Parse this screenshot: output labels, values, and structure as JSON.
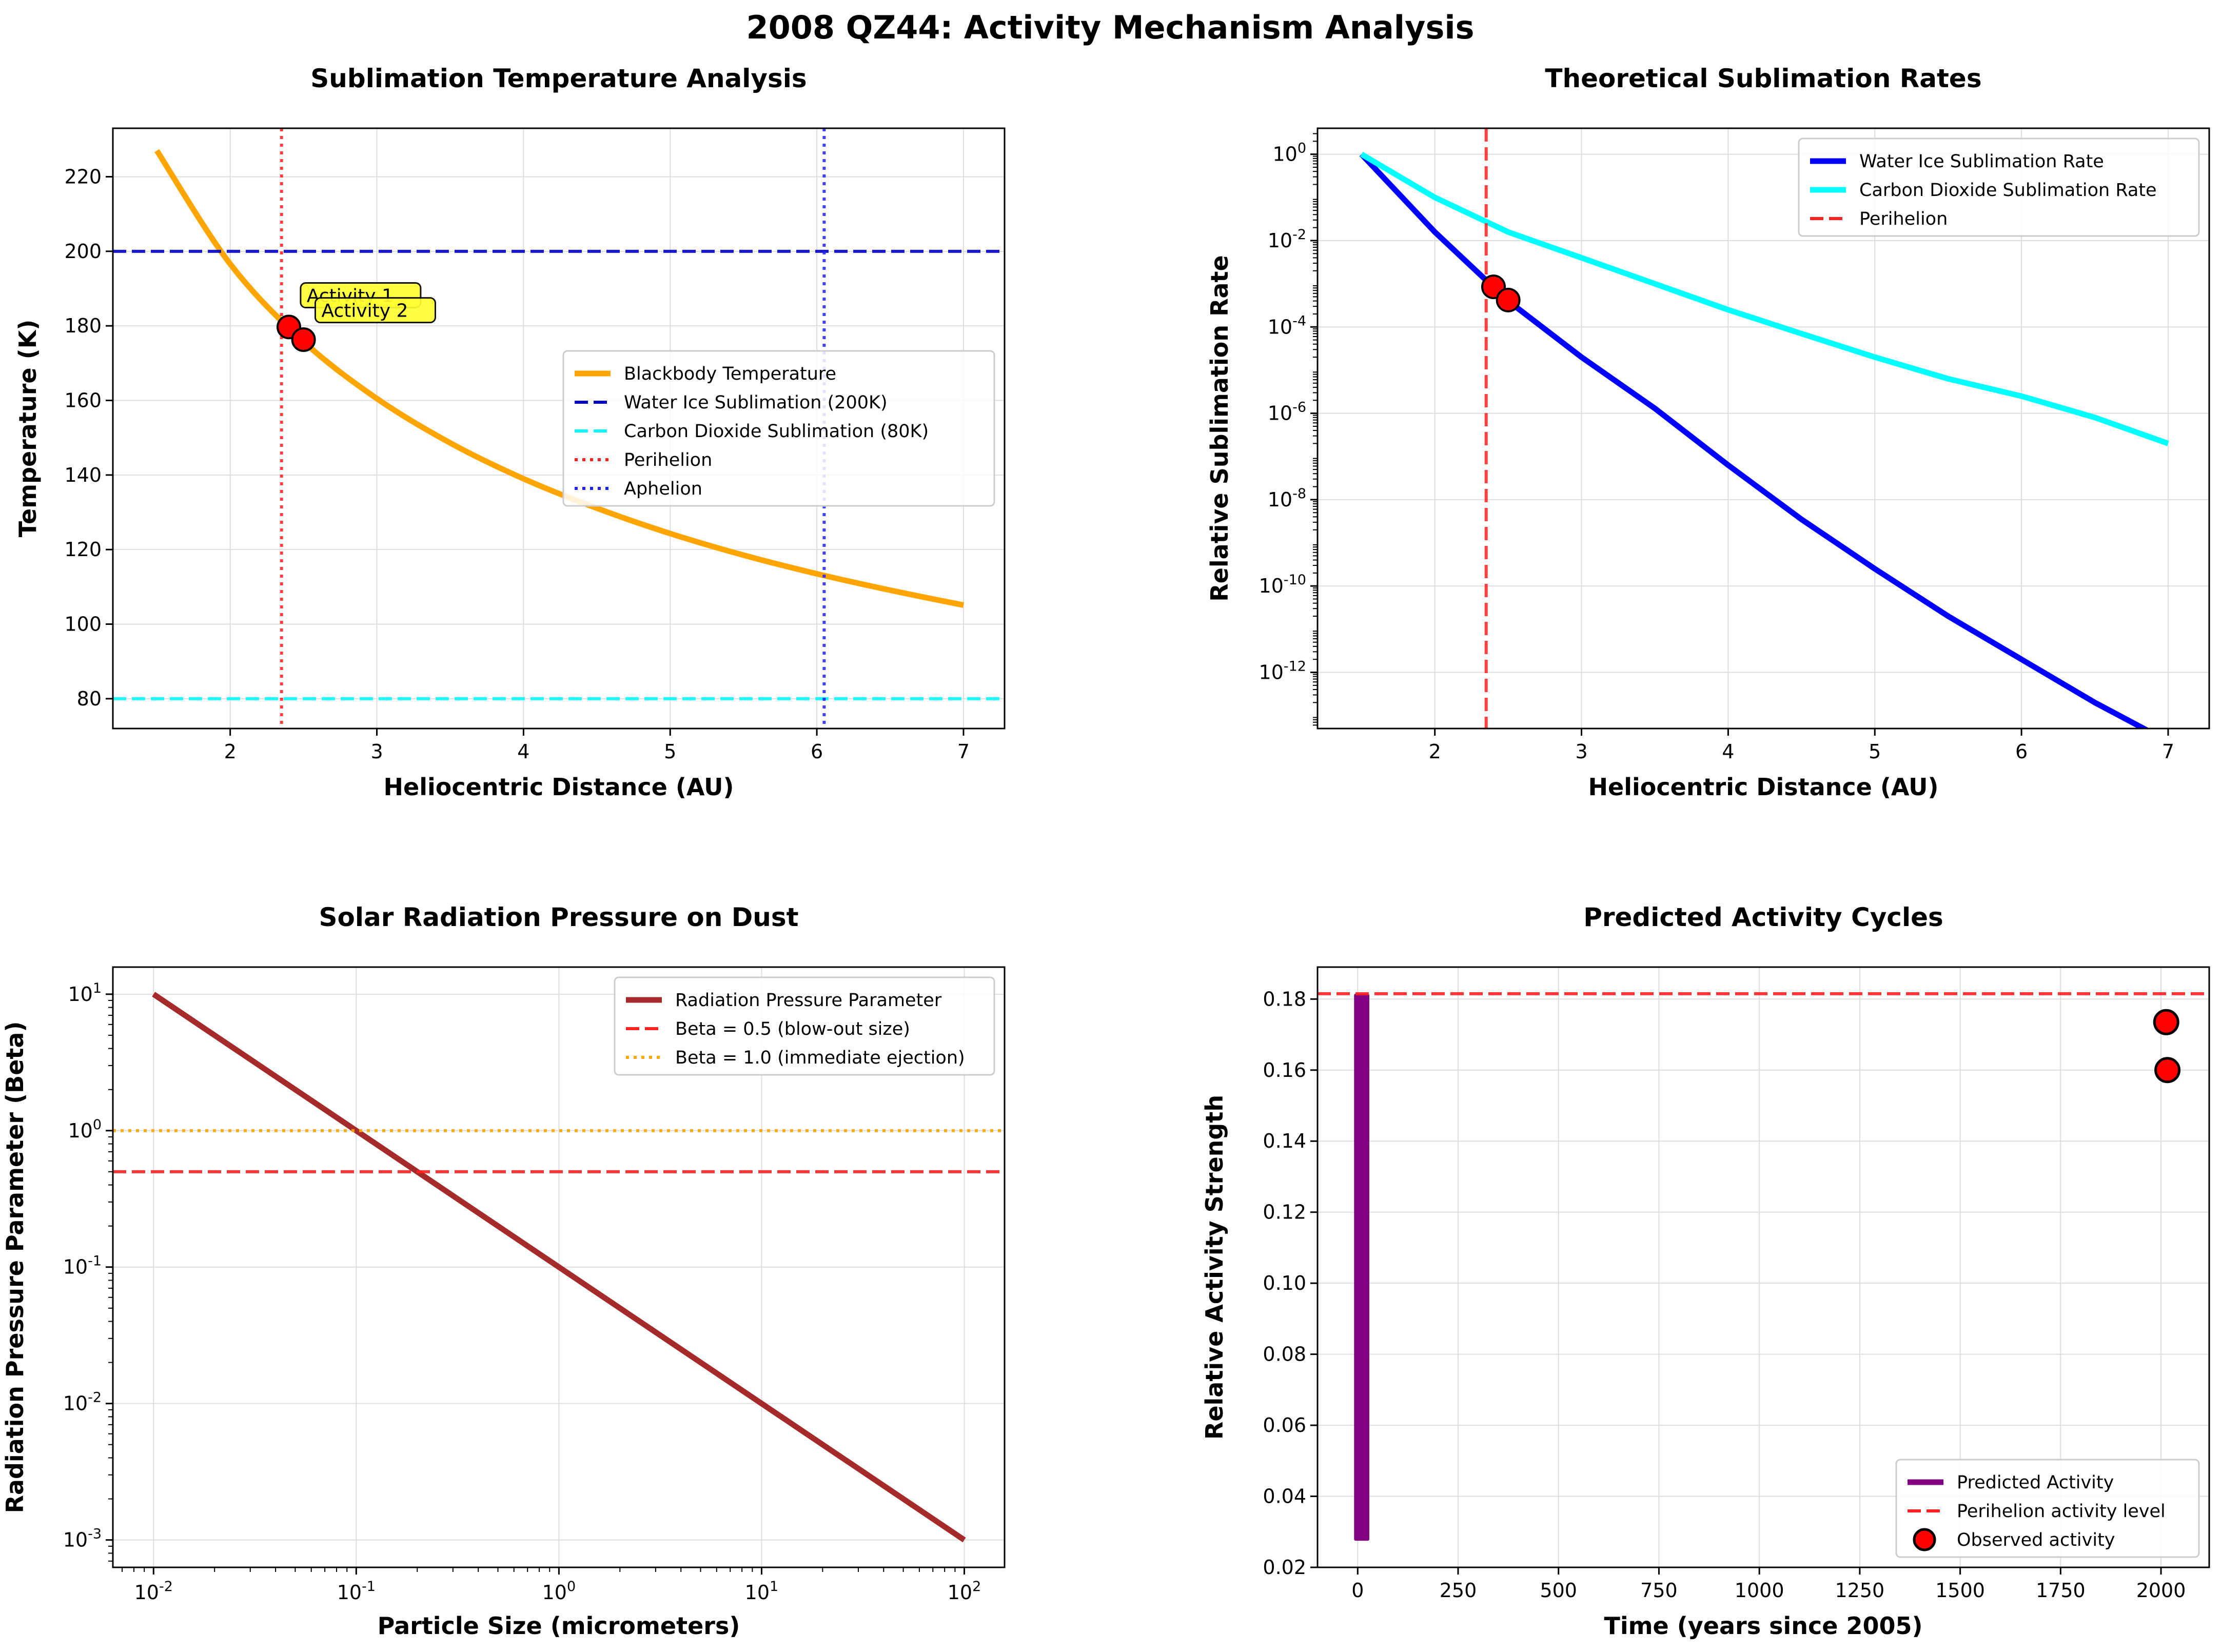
{
  "figure": {
    "title": "2008 QZ44: Activity Mechanism Analysis"
  },
  "chart_data": [
    {
      "type": "line",
      "title": "Sublimation Temperature Analysis",
      "xlabel": "Heliocentric Distance (AU)",
      "ylabel": "Temperature (K)",
      "xlim": [
        1.2,
        7.28
      ],
      "ylim": [
        72,
        233
      ],
      "yscale": "linear",
      "xticks": [
        2,
        3,
        4,
        5,
        6,
        7
      ],
      "yticks": [
        80,
        100,
        120,
        140,
        160,
        180,
        200,
        220
      ],
      "grid": true,
      "legend": "center-right",
      "series": [
        {
          "name": "Blackbody Temperature",
          "kind": "curve",
          "x": [
            1.5,
            2.0,
            2.5,
            3.0,
            3.5,
            4.0,
            4.5,
            5.0,
            5.5,
            6.0,
            6.5,
            7.0
          ],
          "y": [
            227.0,
            196.6,
            175.8,
            160.5,
            148.6,
            139.0,
            131.1,
            124.3,
            118.5,
            113.5,
            109.1,
            105.1
          ],
          "color": "#ffa500",
          "dash": "solid"
        },
        {
          "name": "Water Ice Sublimation (200K)",
          "kind": "hline",
          "y": 200,
          "color": "#0000cc",
          "dash": "dashed"
        },
        {
          "name": "Carbon Dioxide Sublimation (80K)",
          "kind": "hline",
          "y": 80,
          "color": "#00ffff",
          "dash": "dashed"
        },
        {
          "name": "Perihelion",
          "kind": "vline",
          "x": 2.35,
          "color": "#ff2020",
          "dash": "dotted"
        },
        {
          "name": "Aphelion",
          "kind": "vline",
          "x": 6.05,
          "color": "#2020ff",
          "dash": "dotted"
        }
      ],
      "markers": [
        {
          "x": 2.4,
          "y": 179.7
        },
        {
          "x": 2.5,
          "y": 176.3
        }
      ],
      "annotations": [
        {
          "text": "Activity 1",
          "x": 2.48,
          "y": 186
        },
        {
          "text": "Activity 2",
          "x": 2.58,
          "y": 182
        }
      ]
    },
    {
      "type": "line",
      "title": "Theoretical Sublimation Rates",
      "xlabel": "Heliocentric Distance (AU)",
      "ylabel": "Relative Sublimation Rate",
      "xlim": [
        1.2,
        7.28
      ],
      "ylim": [
        5e-14,
        4
      ],
      "yscale": "log",
      "xticks": [
        2,
        3,
        4,
        5,
        6,
        7
      ],
      "yticks": [
        1,
        0.01,
        0.0001,
        1e-06,
        1e-08,
        1e-10,
        1e-12
      ],
      "ytick_exponents": [
        0,
        -2,
        -4,
        -6,
        -8,
        -10,
        -12
      ],
      "grid": true,
      "legend": "top-right",
      "series": [
        {
          "name": "Water Ice Sublimation Rate",
          "kind": "curve",
          "x": [
            1.5,
            2.0,
            2.5,
            3.0,
            3.5,
            4.0,
            4.5,
            5.0,
            5.5,
            6.0,
            6.5,
            7.0
          ],
          "y": [
            1,
            0.0158,
            0.0004,
            2e-05,
            1.3e-06,
            6.3e-08,
            3.5e-09,
            2.5e-10,
            2e-11,
            2e-12,
            2e-13,
            2.5e-14
          ],
          "color": "#0000ff",
          "dash": "solid"
        },
        {
          "name": "Carbon Dioxide Sublimation Rate",
          "kind": "curve",
          "x": [
            1.5,
            2.0,
            2.5,
            3.0,
            3.5,
            4.0,
            4.5,
            5.0,
            5.5,
            6.0,
            6.5,
            7.0
          ],
          "y": [
            1,
            0.1,
            0.0158,
            0.004,
            0.001,
            0.00025,
            7e-05,
            2e-05,
            6.3e-06,
            2.5e-06,
            8e-07,
            2e-07
          ],
          "color": "#00ffff",
          "dash": "solid"
        },
        {
          "name": "Perihelion",
          "kind": "vline",
          "x": 2.35,
          "color": "#ff2020",
          "dash": "dashed"
        }
      ],
      "markers": [
        {
          "x": 2.4,
          "y": 0.00085
        },
        {
          "x": 2.5,
          "y": 0.00042
        }
      ]
    },
    {
      "type": "line",
      "title": "Solar Radiation Pressure on Dust",
      "xlabel": "Particle Size (micrometers)",
      "ylabel": "Radiation Pressure Parameter (Beta)",
      "xlim": [
        0.0063,
        158
      ],
      "ylim": [
        0.00063,
        15.8
      ],
      "xscale": "log",
      "yscale": "log",
      "xticks": [
        0.01,
        0.1,
        1,
        10,
        100
      ],
      "xtick_exponents": [
        -2,
        -1,
        0,
        1,
        2
      ],
      "yticks": [
        10,
        1,
        0.1,
        0.01,
        0.001
      ],
      "ytick_exponents": [
        1,
        0,
        -1,
        -2,
        -3
      ],
      "grid": true,
      "legend": "top-right",
      "series": [
        {
          "name": "Radiation Pressure Parameter",
          "kind": "curve",
          "x": [
            0.01,
            100
          ],
          "y": [
            10,
            0.001
          ],
          "color": "#a52a2a",
          "dash": "solid"
        },
        {
          "name": "Beta = 0.5 (blow-out size)",
          "kind": "hline",
          "y": 0.5,
          "color": "#ff2020",
          "dash": "dashed"
        },
        {
          "name": "Beta = 1.0 (immediate ejection)",
          "kind": "hline",
          "y": 1.0,
          "color": "#ffa500",
          "dash": "dotted"
        }
      ]
    },
    {
      "type": "line",
      "title": "Predicted Activity Cycles",
      "xlabel": "Time (years since 2005)",
      "ylabel": "Relative Activity Strength",
      "xlim": [
        -100,
        2120
      ],
      "ylim": [
        0.02,
        0.189
      ],
      "yscale": "linear",
      "xticks": [
        0,
        250,
        500,
        750,
        1000,
        1250,
        1500,
        1750,
        2000
      ],
      "yticks": [
        0.02,
        0.04,
        0.06,
        0.08,
        0.1,
        0.12,
        0.14,
        0.16,
        0.18
      ],
      "ytick_labels": [
        "0.02",
        "0.04",
        "0.06",
        "0.08",
        "0.10",
        "0.12",
        "0.14",
        "0.16",
        "0.18"
      ],
      "grid": true,
      "legend": "bottom-right",
      "series": [
        {
          "name": "Predicted Activity",
          "kind": "band",
          "x": [
            0,
            20
          ],
          "y": [
            0.0275,
            0.1815
          ],
          "color": "#800080"
        },
        {
          "name": "Perihelion activity level",
          "kind": "hline",
          "y": 0.1815,
          "color": "#ff2020",
          "dash": "dashed"
        },
        {
          "name": "Observed activity",
          "kind": "scatter",
          "x": [
            2013,
            2016
          ],
          "y": [
            0.1735,
            0.16
          ],
          "color": "#ff0000"
        }
      ]
    }
  ]
}
